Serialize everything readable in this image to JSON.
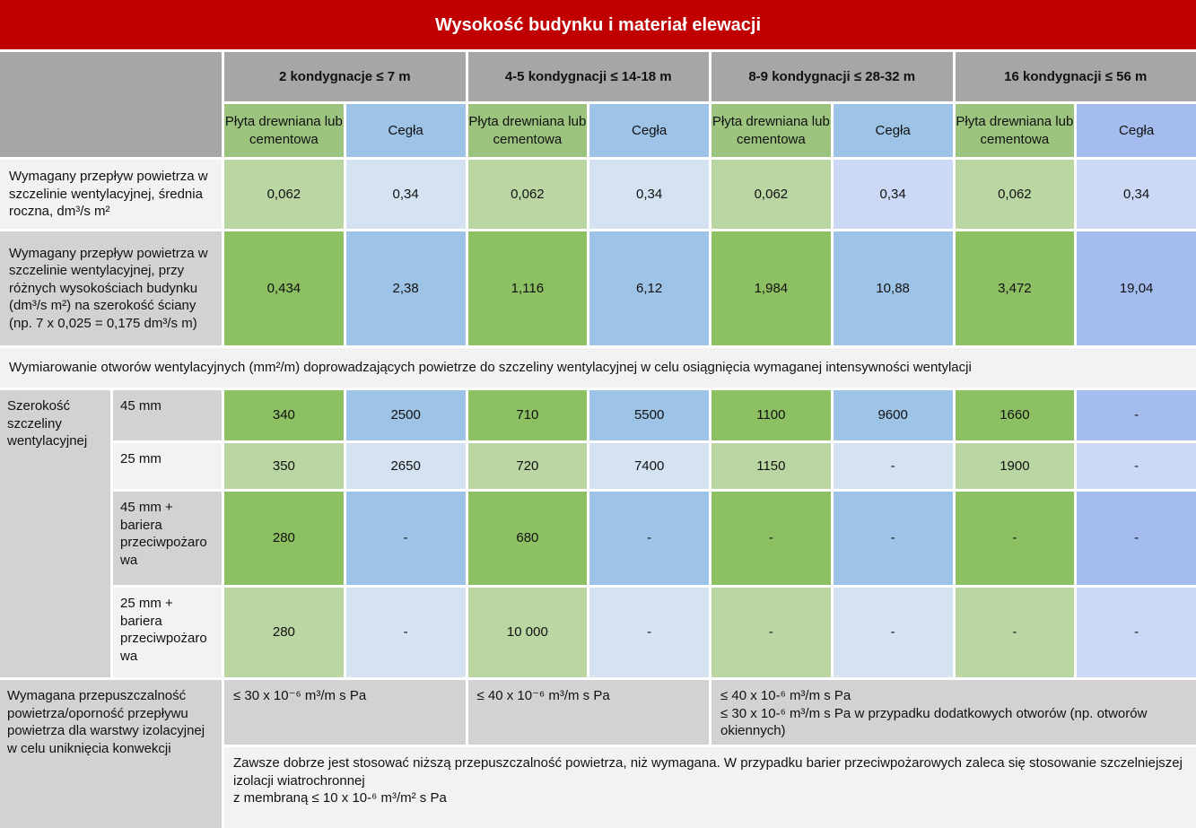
{
  "title": "Wysokość budynku i materiał elewacji",
  "palette": {
    "red": "#C00000",
    "headgray": "#A6A6A6",
    "labeldark": "#D2D2D2",
    "labellight": "#F2F2F2",
    "greenhead": "#9CC47E",
    "green": "#8DC063",
    "greenlight": "#BAD7A3",
    "bluehead": "#9DC3E6",
    "blue": "#9DC3E6",
    "bluelight": "#D4E2F1",
    "lavdark": "#A4BCEE",
    "lavlight": "#CBD9F6"
  },
  "column_groups": [
    {
      "label": "2 kondygnacje ≤ 7 m"
    },
    {
      "label": "4-5 kondygnacji ≤ 14-18 m"
    },
    {
      "label": "8-9 kondygnacji ≤ 28-32 m"
    },
    {
      "label": "16 kondygnacji ≤ 56 m"
    }
  ],
  "materials": {
    "wood": "Płyta drewniana lub cementowa",
    "brick": "Cegła"
  },
  "flow_rows": [
    {
      "label": "Wymagany przepływ powietrza w szczelinie wentylacyjnej, średnia roczna, dm³/s m²",
      "values": [
        "0,062",
        "0,34",
        "0,062",
        "0,34",
        "0,062",
        "0,34",
        "0,062",
        "0,34"
      ]
    },
    {
      "label": "Wymagany przepływ powietrza w szczelinie wentylacyjnej, przy różnych wysokościach budynku (dm³/s m²) na szerokość ściany (np. 7 x 0,025 = 0,175 dm³/s m)",
      "values": [
        "0,434",
        "2,38",
        "1,116",
        "6,12",
        "1,984",
        "10,88",
        "3,472",
        "19,04"
      ]
    }
  ],
  "section_note": "Wymiarowanie otworów wentylacyjnych (mm²/m) doprowadzających powietrze do szczeliny wentylacyjnej w celu osiągnięcia wymaganej intensywności wentylacji",
  "gap_section": {
    "label": "Szerokość szczeliny wentylacyjnej",
    "rows": [
      {
        "sub": "45 mm",
        "values": [
          "340",
          "2500",
          "710",
          "5500",
          "1100",
          "9600",
          "1660",
          "-"
        ]
      },
      {
        "sub": "25 mm",
        "values": [
          "350",
          "2650",
          "720",
          "7400",
          "1150",
          "-",
          "1900",
          "-"
        ]
      },
      {
        "sub": "45 mm + bariera przeciwpożarowa",
        "values": [
          "280",
          "-",
          "680",
          "-",
          "-",
          "-",
          "-",
          "-"
        ]
      },
      {
        "sub": "25 mm + bariera przeciwpożarowa",
        "values": [
          "280",
          "-",
          "10 000",
          "-",
          "-",
          "-",
          "-",
          "-"
        ]
      }
    ]
  },
  "permeability": {
    "label": "Wymagana przepuszczalność powietrza/oporność przepływu powietrza dla warstwy izolacyjnej\nw celu uniknięcia konwekcji",
    "cells": [
      "≤ 30 x 10⁻⁶ m³/m s Pa",
      "≤ 40 x 10⁻⁶ m³/m s Pa",
      "≤ 40 x 10-⁶ m³/m s Pa\n≤ 30 x 10-⁶ m³/m s Pa w przypadku dodatkowych otworów (np. otworów okiennych)"
    ],
    "note": "Zawsze dobrze jest stosować niższą przepuszczalność powietrza, niż wymagana. W przypadku barier przeciwpożarowych zaleca się stosowanie szczelniejszej izolacji wiatrochronnej\nz membraną ≤ 10 x 10-⁶ m³/m² s Pa"
  }
}
